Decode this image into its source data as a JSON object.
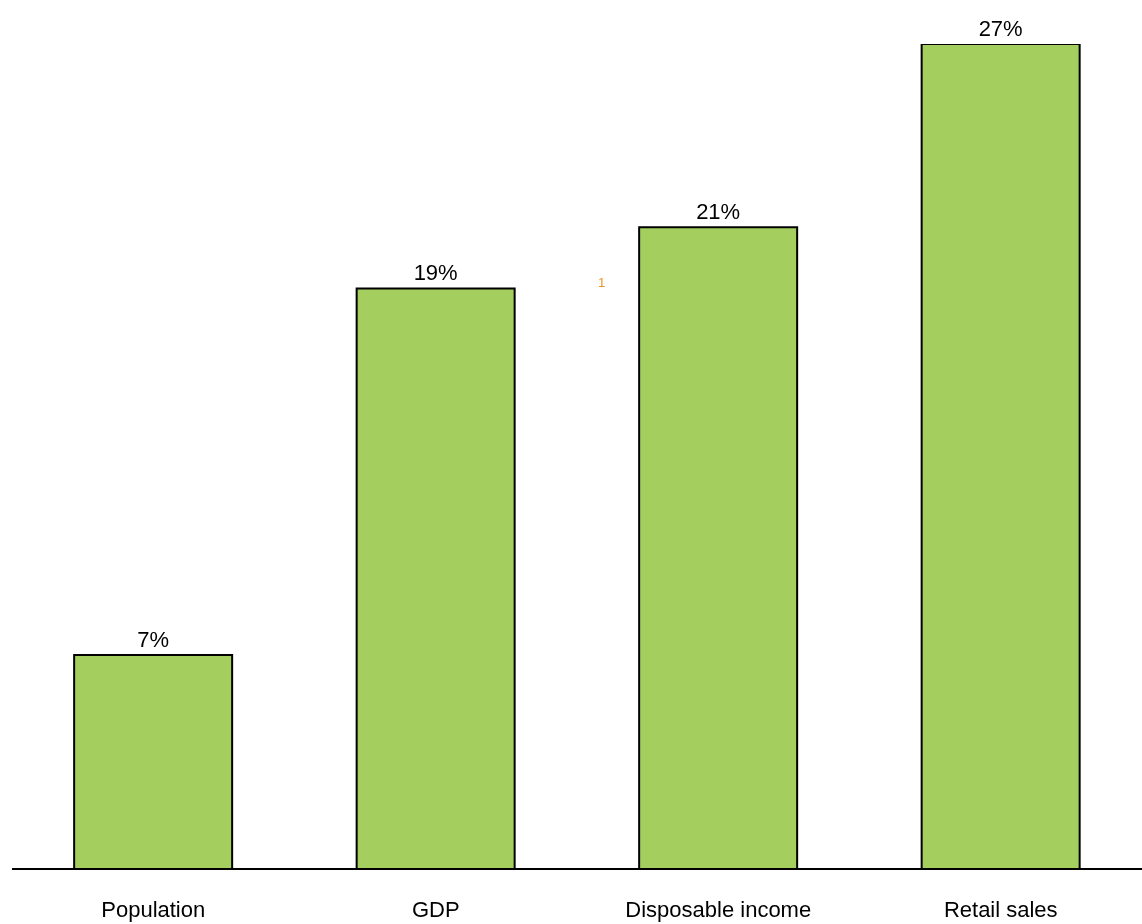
{
  "chart_data": {
    "type": "bar",
    "categories": [
      "Population",
      "GDP",
      "Disposable income",
      "Retail sales"
    ],
    "values": [
      7,
      19,
      21,
      27
    ],
    "value_labels": [
      "7%",
      "19%",
      "21%",
      "27%"
    ],
    "color": "#a4cf5e",
    "annotations": [
      "1"
    ],
    "grid": false,
    "legend": false
  }
}
